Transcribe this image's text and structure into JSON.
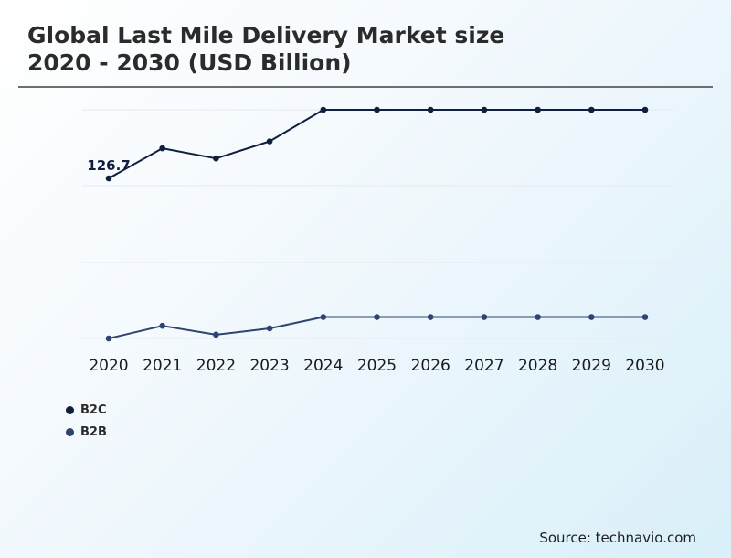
{
  "header": {
    "title_line1": "Global Last Mile Delivery Market size",
    "title_line2": "2020 - 2030 (USD Billion)"
  },
  "source": "Source: technavio.com",
  "colors": {
    "b2c": "#0f1f3d",
    "b2b": "#2d4470",
    "gridline": "#e6e9ee"
  },
  "chart_data": {
    "type": "line",
    "categories": [
      "2020",
      "2021",
      "2022",
      "2023",
      "2024",
      "2025",
      "2026",
      "2027",
      "2028",
      "2029",
      "2030"
    ],
    "series": [
      {
        "name": "B2C",
        "values": [
          126.7,
          150.5,
          142.5,
          156,
          181,
          181,
          181,
          181,
          181,
          181,
          181
        ]
      },
      {
        "name": "B2B",
        "values": [
          0,
          10,
          3,
          8,
          17,
          17,
          17,
          17,
          17,
          17,
          17
        ]
      }
    ],
    "data_labels": [
      {
        "series": "B2C",
        "category": "2020",
        "text": "126.7"
      }
    ],
    "ylim": [
      0,
      181
    ],
    "grid": true,
    "legend_position": "bottom-left",
    "title": "Global Last Mile Delivery Market size 2020 - 2030 (USD Billion)",
    "xlabel": "",
    "ylabel": ""
  }
}
